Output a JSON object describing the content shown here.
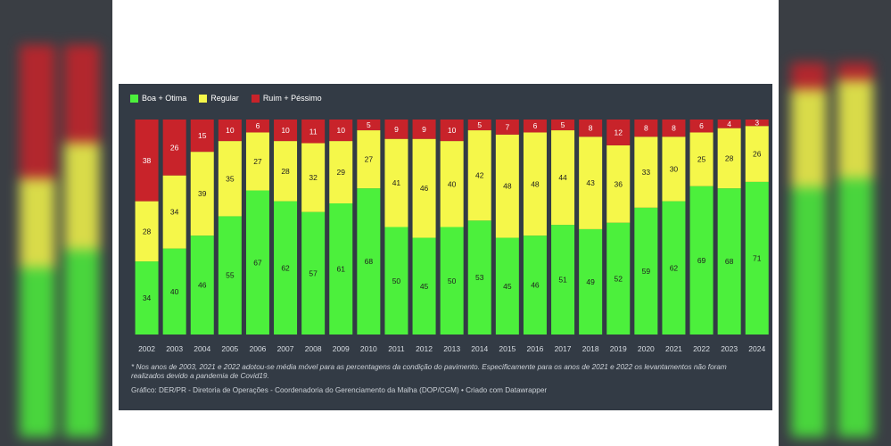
{
  "colors": {
    "good": "#4cf03c",
    "regular": "#f5f74a",
    "bad": "#c8232a"
  },
  "legend": [
    {
      "label": "Boa + Otima",
      "color": "#4cf03c"
    },
    {
      "label": "Regular",
      "color": "#f5f74a"
    },
    {
      "label": "Ruim + Péssimo",
      "color": "#c8232a"
    }
  ],
  "chart_data": {
    "type": "bar",
    "stacked": true,
    "categories": [
      "2002",
      "2003",
      "2004",
      "2005",
      "2006",
      "2007",
      "2008",
      "2009",
      "2010",
      "2011",
      "2012",
      "2013",
      "2014",
      "2015",
      "2016",
      "2017",
      "2018",
      "2019",
      "2020",
      "2021",
      "2022",
      "2023",
      "2024"
    ],
    "series": [
      {
        "name": "Boa + Otima",
        "values": [
          34,
          40,
          46,
          55,
          67,
          62,
          57,
          61,
          68,
          50,
          45,
          50,
          53,
          45,
          46,
          51,
          49,
          52,
          59,
          62,
          69,
          68,
          71
        ]
      },
      {
        "name": "Regular",
        "values": [
          28,
          34,
          39,
          35,
          27,
          28,
          32,
          29,
          27,
          41,
          46,
          40,
          42,
          48,
          48,
          44,
          43,
          36,
          33,
          30,
          25,
          28,
          26
        ]
      },
      {
        "name": "Ruim + Péssimo",
        "values": [
          38,
          26,
          15,
          10,
          6,
          10,
          11,
          10,
          5,
          9,
          9,
          10,
          5,
          7,
          6,
          5,
          8,
          12,
          8,
          8,
          6,
          4,
          3
        ]
      }
    ],
    "ylim": [
      0,
      100
    ],
    "legend_position": "top-left"
  },
  "note": "* Nos anos de 2003, 2021 e 2022 adotou-se média móvel para as percentagens da condição do pavimento. Especificamente para os anos de 2021 e 2022 os levantamentos não foram realizados devido a pandemia de Covid19.",
  "credit": "Gráfico: DER/PR - Diretoria de Operações - Coordenadoria do Gerenciamento da Malha (DOP/CGM) • Criado com Datawrapper"
}
